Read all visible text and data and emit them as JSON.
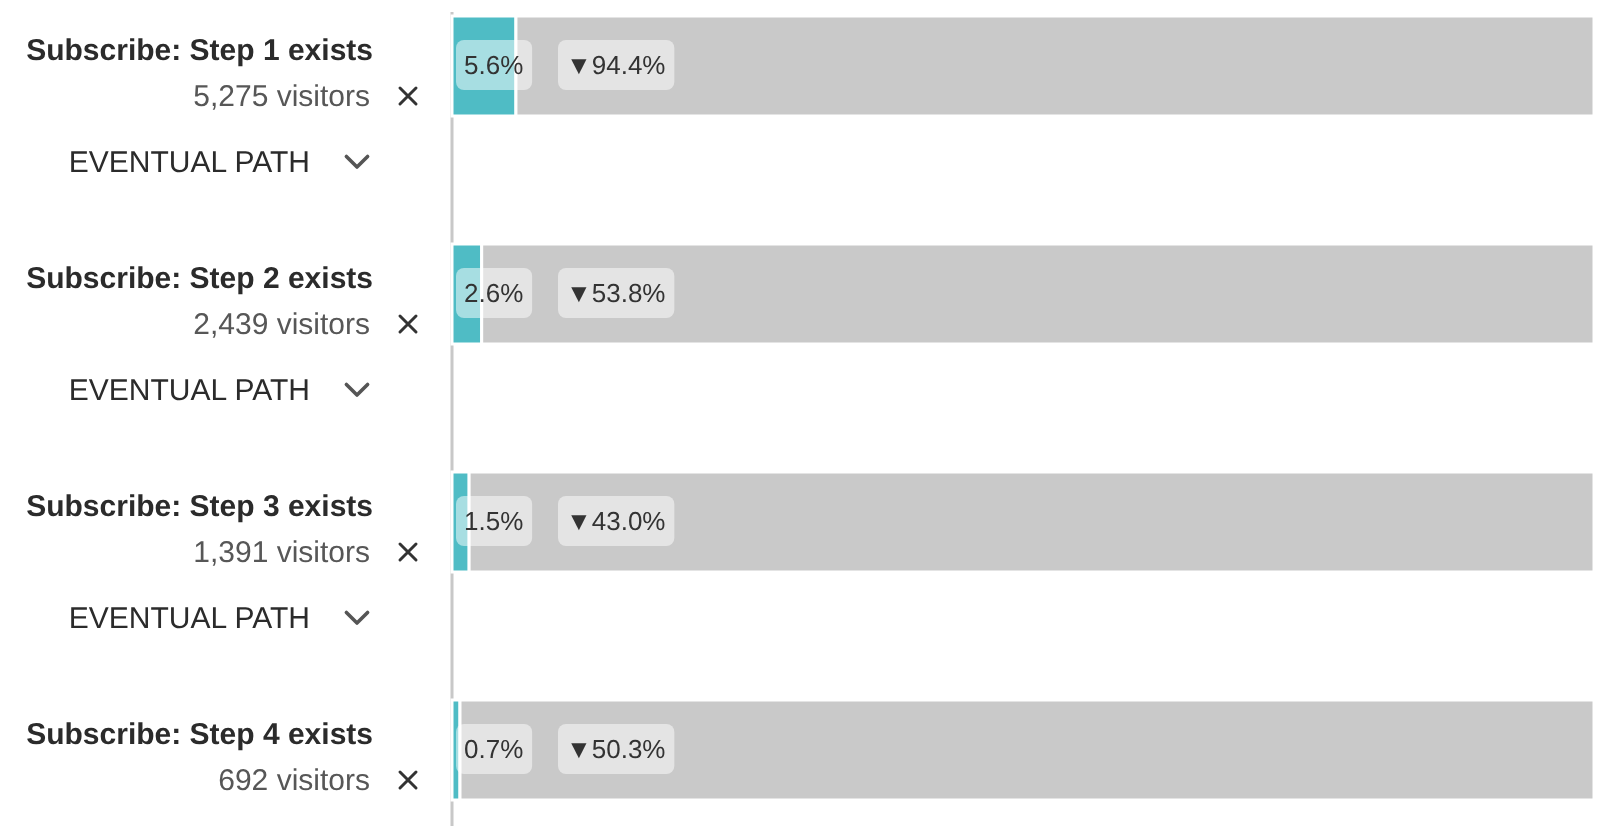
{
  "chart_data": {
    "type": "bar",
    "orientation": "horizontal",
    "stacked": true,
    "categories": [
      "Subscribe: Step 1 exists",
      "Subscribe: Step 2 exists",
      "Subscribe: Step 3 exists",
      "Subscribe: Step 4 exists"
    ],
    "series": [
      {
        "color": "#4fbcc5",
        "values": [
          5.6,
          2.6,
          1.5,
          0.7
        ],
        "value_labels": [
          "5.6%",
          "2.6%",
          "1.5%",
          "0.7%"
        ]
      },
      {
        "color": "#c9c9c9",
        "values": [
          94.4,
          97.4,
          98.5,
          99.3
        ]
      }
    ],
    "xlim": [
      0,
      100
    ],
    "tick_labels": "y",
    "annotations": [
      "▼94.4%",
      "5,275 visitors",
      "EVENTUAL PATH",
      "▼53.8%",
      "2,439 visitors",
      "EVENTUAL PATH",
      "▼43.0%",
      "1,391 visitors",
      "EVENTUAL PATH",
      "▼50.3%",
      "692 visitors"
    ]
  }
}
